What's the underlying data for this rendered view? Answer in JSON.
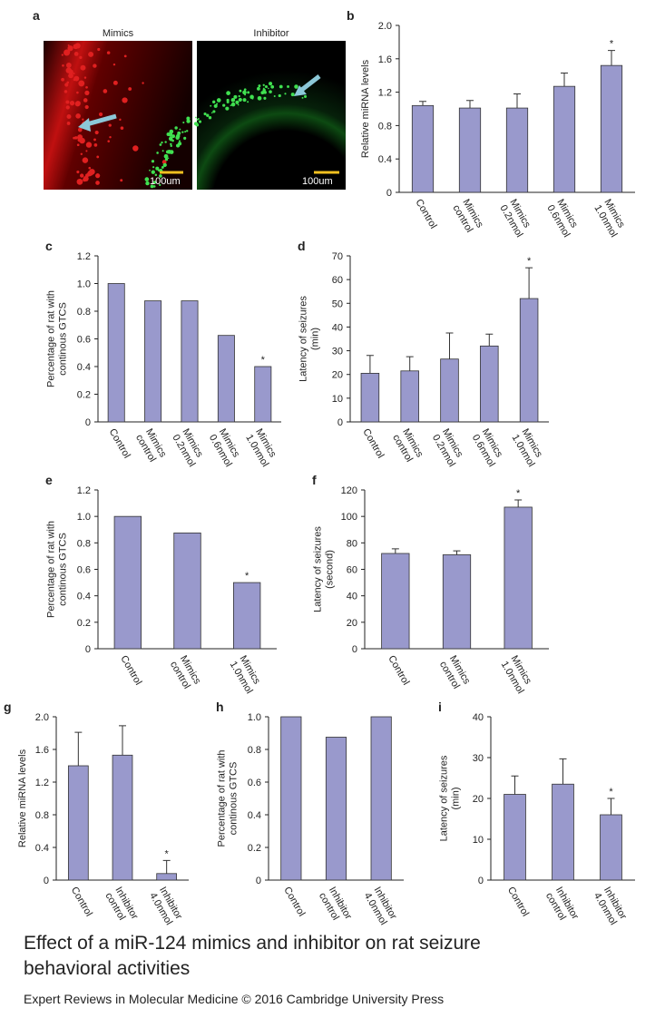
{
  "figure_a": {
    "label": "a",
    "images": [
      {
        "title": "Mimics",
        "scale_bar": "100um"
      },
      {
        "title": "Inhibitor",
        "scale_bar": "100um"
      }
    ]
  },
  "chart_data": [
    {
      "type": "bar",
      "label": "b",
      "y_label": [
        "Relative miRNA levels"
      ],
      "categories": [
        "Control",
        "Mimics control",
        "Mimics 0.2nmol",
        "Mimics 0.6nmol",
        "Mimics 1.0nmol"
      ],
      "values": [
        1.04,
        1.01,
        1.01,
        1.27,
        1.52
      ],
      "errors": [
        0.05,
        0.09,
        0.17,
        0.16,
        0.18
      ],
      "significance": [
        null,
        null,
        null,
        null,
        "*"
      ],
      "color": "#9999cc",
      "ylim": [
        0,
        2
      ],
      "yticks": [
        0,
        0.4,
        0.8,
        1.2,
        1.6,
        {
          "value": 2,
          "label": "2.0"
        }
      ]
    },
    {
      "type": "bar",
      "label": "c",
      "y_label": [
        "Percentage of rat with",
        "continous GTCS"
      ],
      "categories": [
        "Control",
        "Mimics control",
        "Mimics 0.2nmol",
        "Mimics 0.6nmol",
        "Mimics 1.0nmol"
      ],
      "values": [
        1.0,
        0.875,
        0.875,
        0.625,
        0.4
      ],
      "significance": [
        null,
        null,
        null,
        null,
        "*"
      ],
      "color": "#9999cc",
      "ylim": [
        0,
        1.2
      ],
      "yticks": [
        0,
        0.2,
        0.4,
        0.6,
        0.8,
        {
          "value": 1,
          "label": "1.0"
        },
        1.2
      ]
    },
    {
      "type": "bar",
      "label": "d",
      "y_label": [
        "Latency of seizures",
        "(min)"
      ],
      "categories": [
        "Control",
        "Mimics control",
        "Mimics 0.2nmol",
        "Mimics 0.6nmol",
        "Mimics 1.0nmol"
      ],
      "values": [
        20.5,
        21.5,
        26.5,
        32,
        52
      ],
      "errors": [
        7.5,
        6,
        11,
        5,
        13
      ],
      "significance": [
        null,
        null,
        null,
        null,
        "*"
      ],
      "color": "#9999cc",
      "ylim": [
        0,
        70
      ],
      "yticks": [
        0,
        10,
        20,
        30,
        40,
        50,
        60,
        70
      ]
    },
    {
      "type": "bar",
      "label": "e",
      "y_label": [
        "Percentage of rat with",
        "continous GTCS"
      ],
      "categories": [
        "Control",
        "Mimics control",
        "Mimics 1.0nmol"
      ],
      "values": [
        1.0,
        0.875,
        0.5
      ],
      "significance": [
        null,
        null,
        "*"
      ],
      "color": "#9999cc",
      "ylim": [
        0,
        1.2
      ],
      "yticks": [
        0,
        0.2,
        0.4,
        0.6,
        0.8,
        {
          "value": 1,
          "label": "1.0"
        },
        1.2
      ]
    },
    {
      "type": "bar",
      "label": "f",
      "y_label": [
        "Latency of seizures",
        "(second)"
      ],
      "categories": [
        "Control",
        "Mimics control",
        "Mimics 1.0nmol"
      ],
      "values": [
        72,
        71,
        107
      ],
      "errors": [
        3.5,
        3,
        5.5
      ],
      "significance": [
        null,
        null,
        "*"
      ],
      "color": "#9999cc",
      "ylim": [
        0,
        120
      ],
      "yticks": [
        0,
        20,
        40,
        60,
        80,
        100,
        120
      ]
    },
    {
      "type": "bar",
      "label": "g",
      "y_label": [
        "Relative miRNA levels"
      ],
      "categories": [
        "Control",
        "Inhibitor control",
        "Inhibitor 4.0nmol"
      ],
      "values": [
        1.4,
        1.53,
        0.08
      ],
      "errors": [
        0.41,
        0.36,
        0.16
      ],
      "significance": [
        null,
        null,
        "*"
      ],
      "color": "#9999cc",
      "ylim": [
        0,
        2
      ],
      "yticks": [
        0,
        0.4,
        0.8,
        1.2,
        1.6,
        {
          "value": 2,
          "label": "2.0"
        }
      ]
    },
    {
      "type": "bar",
      "label": "h",
      "y_label": [
        "Percentage of rat with",
        "continous GTCS"
      ],
      "categories": [
        "Control",
        "Inhibitor control",
        "Inhibitor 4.0nmol"
      ],
      "values": [
        1.0,
        0.875,
        1.0
      ],
      "color": "#9999cc",
      "ylim": [
        0,
        1
      ],
      "yticks": [
        0,
        0.2,
        0.4,
        0.6,
        0.8,
        {
          "value": 1,
          "label": "1.0"
        }
      ]
    },
    {
      "type": "bar",
      "label": "i",
      "y_label": [
        "Latency of seizures",
        "(min)"
      ],
      "categories": [
        "Control",
        "Inhibitor control",
        "Inhibitor 4.0nmol"
      ],
      "values": [
        21,
        23.5,
        16
      ],
      "errors": [
        4.5,
        6.2,
        4
      ],
      "significance": [
        null,
        null,
        "*"
      ],
      "color": "#9999cc",
      "ylim": [
        0,
        40
      ],
      "yticks": [
        0,
        10,
        20,
        30,
        40
      ]
    }
  ],
  "caption": [
    "Effect of a miR-124 mimics and inhibitor on rat seizure",
    "behavioral activities"
  ],
  "footer": "Expert Reviews in Molecular Medicine © 2016 Cambridge University Press"
}
